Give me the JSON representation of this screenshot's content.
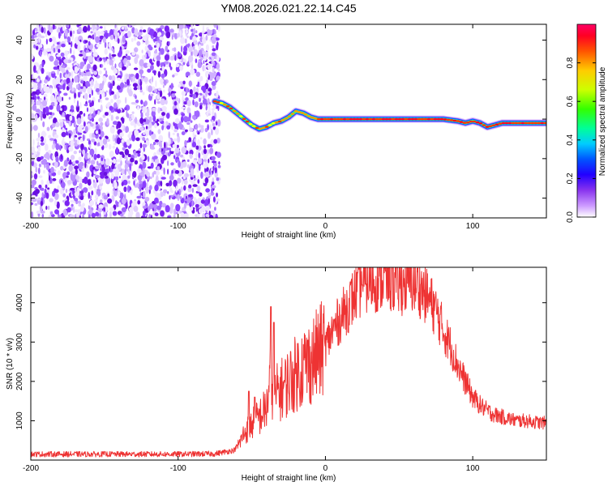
{
  "title": "YM08.2026.021.22.14.C45",
  "chart_data": [
    {
      "type": "heatmap",
      "title": "YM08.2026.021.22.14.C45",
      "xlabel": "Height of straight line (km)",
      "ylabel": "Frequency (Hz)",
      "xlim": [
        -200,
        150
      ],
      "ylim": [
        -50,
        48
      ],
      "xticks": [
        -200,
        -100,
        0,
        100
      ],
      "yticks": [
        -40,
        -20,
        0,
        20,
        40
      ],
      "colorbar": {
        "label": "Normalized spectral amplitude",
        "range": [
          0,
          1
        ],
        "ticks": [
          0.0,
          0.2,
          0.4,
          0.6,
          0.8
        ],
        "colormap": [
          "#ffffff",
          "#cc99ff",
          "#6600cc",
          "#0000ff",
          "#00ccff",
          "#00ff66",
          "#66ff00",
          "#ffff00",
          "#ff9900",
          "#ff0000",
          "#ff0066"
        ]
      },
      "noise_region_x": [
        -200,
        -72
      ],
      "trace": {
        "x": [
          -75,
          -70,
          -65,
          -60,
          -55,
          -50,
          -45,
          -40,
          -35,
          -30,
          -25,
          -20,
          -15,
          -10,
          -5,
          0,
          20,
          40,
          60,
          80,
          90,
          95,
          100,
          105,
          110,
          115,
          120,
          130,
          140,
          150
        ],
        "y": [
          9,
          8,
          6,
          3,
          0,
          -3,
          -5,
          -4,
          -2,
          -1,
          1,
          4,
          3,
          1,
          0,
          0,
          0,
          0,
          0,
          0,
          -1,
          -2,
          -1,
          -2,
          -4,
          -3,
          -2,
          -2,
          -2,
          -2
        ]
      }
    },
    {
      "type": "line",
      "xlabel": "Height of straight line (km)",
      "ylabel": "SNR (10 * v/v)",
      "xlim": [
        -200,
        150
      ],
      "ylim": [
        0,
        4900
      ],
      "xticks": [
        -200,
        -100,
        0,
        100
      ],
      "yticks": [
        1000,
        2000,
        3000,
        4000
      ],
      "series": [
        {
          "name": "SNR",
          "color": "#ee3333",
          "envelope_x": [
            -200,
            -150,
            -100,
            -75,
            -62,
            -58,
            -55,
            -50,
            -45,
            -40,
            -37,
            -35,
            -33,
            -30,
            -27,
            -25,
            -20,
            -15,
            -10,
            -5,
            0,
            5,
            10,
            15,
            20,
            25,
            30,
            35,
            40,
            45,
            50,
            55,
            60,
            65,
            70,
            75,
            80,
            85,
            90,
            95,
            100,
            105,
            110,
            115,
            120,
            125,
            130,
            135,
            140,
            145,
            150
          ],
          "envelope_y": [
            150,
            150,
            150,
            160,
            250,
            450,
            700,
            900,
            1100,
            1300,
            2200,
            1500,
            1700,
            1800,
            1900,
            2000,
            2200,
            2400,
            2500,
            2700,
            2900,
            3300,
            3600,
            3900,
            4200,
            4450,
            4550,
            4550,
            4600,
            4550,
            4450,
            4500,
            4500,
            4350,
            4100,
            3800,
            3300,
            2900,
            2400,
            2000,
            1600,
            1400,
            1250,
            1150,
            1100,
            1050,
            1000,
            1000,
            980,
            950,
            950
          ],
          "spikes": [
            {
              "x": -37,
              "y": 3900
            },
            {
              "x": -35,
              "y": 3500
            },
            {
              "x": -52,
              "y": 1750
            },
            {
              "x": -48,
              "y": 1600
            },
            {
              "x": -12,
              "y": 3050
            },
            {
              "x": 25,
              "y": 4450
            },
            {
              "x": 45,
              "y": 4900
            }
          ]
        }
      ]
    }
  ]
}
